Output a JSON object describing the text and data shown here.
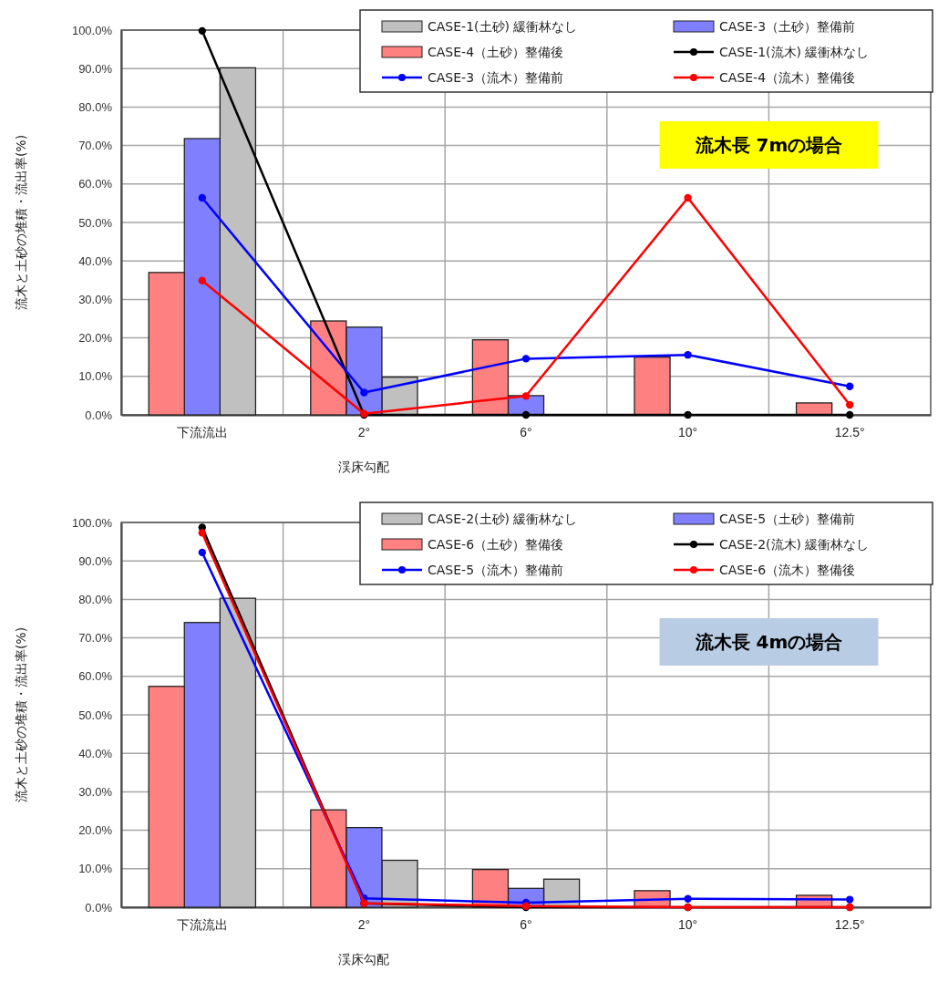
{
  "chart_data": [
    {
      "type": "bar",
      "ylabel": "流木と土砂の堆積・流出率(%)",
      "xlabel": "渓床勾配",
      "categories": [
        "下流流出",
        "2°",
        "6°",
        "10°",
        "12.5°"
      ],
      "series": [
        {
          "name": "CASE-1(土砂) 緩衝林なし",
          "color": "#c0c0c0",
          "values": [
            90.2,
            9.8,
            0,
            0,
            0
          ]
        },
        {
          "name": "CASE-3（土砂）整備前",
          "color": "#8080ff",
          "values": [
            71.8,
            22.8,
            5.0,
            0,
            0
          ]
        },
        {
          "name": "CASE-4（土砂）整備後",
          "color": "#ff8080",
          "values": [
            37.0,
            24.4,
            19.5,
            15.0,
            3.1
          ]
        },
        {
          "name": "CASE-1(流木) 緩衝林なし",
          "type": "line",
          "color": "#000000",
          "values": [
            99.8,
            0,
            0,
            0,
            0
          ]
        },
        {
          "name": "CASE-3（流木）整備前",
          "type": "line",
          "color": "#0000ff",
          "values": [
            56.4,
            5.8,
            14.6,
            15.6,
            7.4
          ]
        },
        {
          "name": "CASE-4（流木）整備後",
          "type": "line",
          "color": "#ff0000",
          "values": [
            34.9,
            0.3,
            4.9,
            56.4,
            2.6
          ]
        }
      ],
      "ylim": [
        0,
        100
      ],
      "yticks": [
        {
          "value": 0,
          "label": "0.0%"
        },
        {
          "value": 10,
          "label": "10.0%"
        },
        {
          "value": 20,
          "label": "20.0%"
        },
        {
          "value": 30,
          "label": "30.0%"
        },
        {
          "value": 40,
          "label": "40.0%"
        },
        {
          "value": 50,
          "label": "50.0%"
        },
        {
          "value": 60,
          "label": "60.0%"
        },
        {
          "value": 70,
          "label": "70.0%"
        },
        {
          "value": 80,
          "label": "80.0%"
        },
        {
          "value": 90,
          "label": "90.0%"
        },
        {
          "value": 100,
          "label": "100.0%"
        }
      ],
      "grid": true,
      "legend": "top right",
      "marker": "circle",
      "annotations": [
        "流木長 7mの場合"
      ]
    },
    {
      "type": "bar",
      "ylabel": "流木と土砂の堆積・流出率(%)",
      "xlabel": "渓床勾配",
      "categories": [
        "下流流出",
        "2°",
        "6°",
        "10°",
        "12.5°"
      ],
      "series": [
        {
          "name": "CASE-2(土砂) 緩衝林なし",
          "color": "#c0c0c0",
          "values": [
            80.3,
            12.2,
            7.3,
            0,
            0
          ]
        },
        {
          "name": "CASE-5（土砂）整備前",
          "color": "#8080ff",
          "values": [
            74.0,
            20.7,
            4.9,
            0,
            0
          ]
        },
        {
          "name": "CASE-6（土砂）整備後",
          "color": "#ff8080",
          "values": [
            57.4,
            25.3,
            9.8,
            4.3,
            3.1
          ]
        },
        {
          "name": "CASE-2(流木) 緩衝林なし",
          "type": "line",
          "color": "#000000",
          "values": [
            98.7,
            1.0,
            0,
            0,
            0
          ]
        },
        {
          "name": "CASE-5（流木）整備前",
          "type": "line",
          "color": "#0000ff",
          "values": [
            92.2,
            2.3,
            1.2,
            2.2,
            2.0
          ]
        },
        {
          "name": "CASE-6（流木）整備後",
          "type": "line",
          "color": "#ff0000",
          "values": [
            97.3,
            1.0,
            0.3,
            0,
            0
          ]
        }
      ],
      "ylim": [
        0,
        100
      ],
      "yticks": [
        {
          "value": 0,
          "label": "0.0%"
        },
        {
          "value": 10,
          "label": "10.0%"
        },
        {
          "value": 20,
          "label": "20.0%"
        },
        {
          "value": 30,
          "label": "30.0%"
        },
        {
          "value": 40,
          "label": "40.0%"
        },
        {
          "value": 50,
          "label": "50.0%"
        },
        {
          "value": 60,
          "label": "60.0%"
        },
        {
          "value": 70,
          "label": "70.0%"
        },
        {
          "value": 80,
          "label": "80.0%"
        },
        {
          "value": 90,
          "label": "90.0%"
        },
        {
          "value": 100,
          "label": "100.0%"
        }
      ],
      "grid": true,
      "legend": "top right",
      "marker": "circle",
      "annotations": [
        "流木長 4mの場合"
      ]
    }
  ]
}
